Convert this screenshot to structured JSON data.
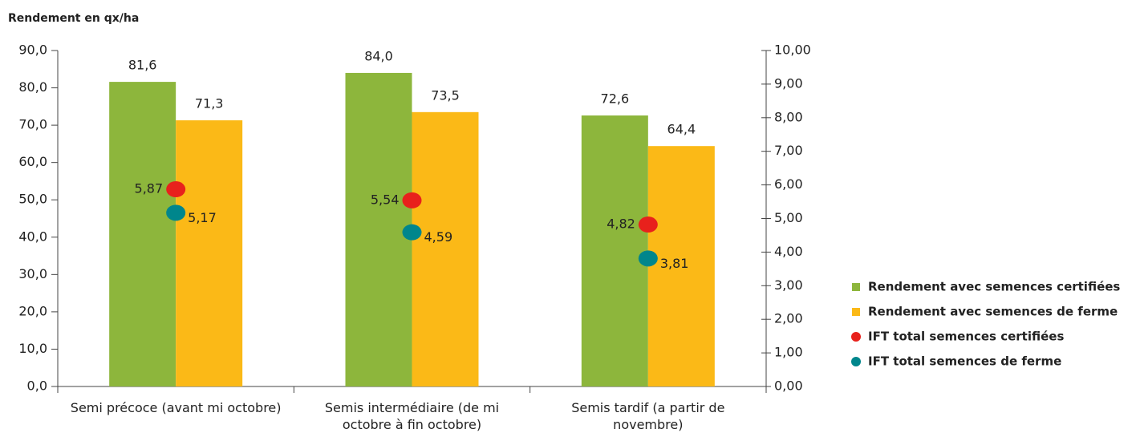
{
  "chart_data": {
    "type": "bar",
    "y_axis_label": "Rendement en qx/ha",
    "categories": [
      "Semi précoce (avant mi octobre)",
      "Semis intermédiaire (de mi octobre à fin octobre)",
      "Semis tardif (a partir de novembre)"
    ],
    "series": [
      {
        "name": "Rendement avec semences certifiées",
        "type": "bar",
        "color": "#8db63c",
        "values": [
          81.6,
          84.0,
          72.6
        ],
        "value_labels": [
          "81,6",
          "84,0",
          "72,6"
        ]
      },
      {
        "name": "Rendement avec semences de ferme",
        "type": "bar",
        "color": "#fbb917",
        "values": [
          71.3,
          73.5,
          64.4
        ],
        "value_labels": [
          "71,3",
          "73,5",
          "64,4"
        ]
      },
      {
        "name": "IFT total semences certifiées",
        "type": "scatter",
        "axis": "y2",
        "color": "#e8211c",
        "values": [
          5.87,
          5.54,
          4.82
        ],
        "value_labels": [
          "5,87",
          "5,54",
          "4,82"
        ]
      },
      {
        "name": "IFT total semences de ferme",
        "type": "scatter",
        "axis": "y2",
        "color": "#00868c",
        "values": [
          5.17,
          4.59,
          3.81
        ],
        "value_labels": [
          "5,17",
          "4,59",
          "3,81"
        ]
      }
    ],
    "ylim": [
      0,
      90
    ],
    "yticks": [
      {
        "value": 0,
        "label": "0,0"
      },
      {
        "value": 10,
        "label": "10,0"
      },
      {
        "value": 20,
        "label": "20,0"
      },
      {
        "value": 30,
        "label": "30,0"
      },
      {
        "value": 40,
        "label": "40,0"
      },
      {
        "value": 50,
        "label": "50,0"
      },
      {
        "value": 60,
        "label": "60,0"
      },
      {
        "value": 70,
        "label": "70,0"
      },
      {
        "value": 80,
        "label": "80,0"
      },
      {
        "value": 90,
        "label": "90,0"
      }
    ],
    "y2lim": [
      0,
      10
    ],
    "y2ticks": [
      {
        "value": 0,
        "label": "0,00"
      },
      {
        "value": 1,
        "label": "1,00"
      },
      {
        "value": 2,
        "label": "2,00"
      },
      {
        "value": 3,
        "label": "3,00"
      },
      {
        "value": 4,
        "label": "4,00"
      },
      {
        "value": 5,
        "label": "5,00"
      },
      {
        "value": 6,
        "label": "6,00"
      },
      {
        "value": 7,
        "label": "7,00"
      },
      {
        "value": 8,
        "label": "8,00"
      },
      {
        "value": 9,
        "label": "9,00"
      },
      {
        "value": 10,
        "label": "10,00"
      }
    ],
    "legend": "right"
  }
}
